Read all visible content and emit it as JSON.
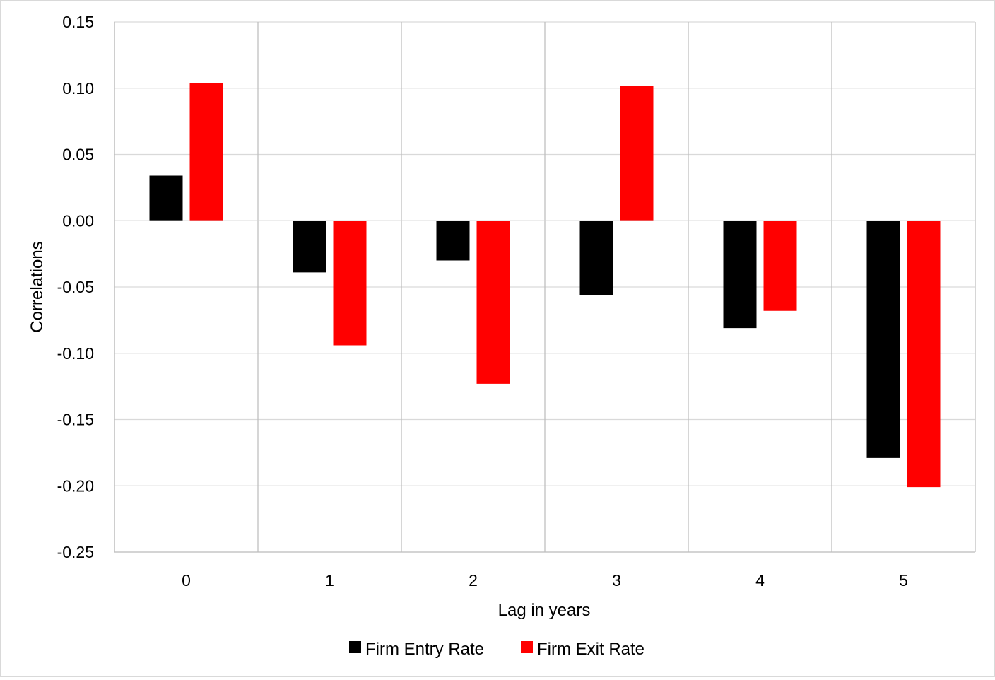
{
  "chart_data": {
    "type": "bar",
    "title": "",
    "xlabel": "Lag in years",
    "ylabel": "Correlations",
    "categories": [
      "0",
      "1",
      "2",
      "3",
      "4",
      "5"
    ],
    "series": [
      {
        "name": "Firm Entry Rate",
        "color": "#000000",
        "values": [
          0.034,
          -0.039,
          -0.03,
          -0.056,
          -0.081,
          -0.179
        ]
      },
      {
        "name": "Firm Exit Rate",
        "color": "#ff0000",
        "values": [
          0.104,
          -0.094,
          -0.123,
          0.102,
          -0.068,
          -0.201
        ]
      }
    ],
    "ylim": [
      -0.25,
      0.15
    ],
    "yticks": [
      "0.15",
      "0.10",
      "0.05",
      "0.00",
      "-0.05",
      "-0.10",
      "-0.15",
      "-0.20",
      "-0.25"
    ],
    "ytick_values": [
      0.15,
      0.1,
      0.05,
      0.0,
      -0.05,
      -0.1,
      -0.15,
      -0.2,
      -0.25
    ],
    "grid": true,
    "legend_position": "bottom"
  }
}
